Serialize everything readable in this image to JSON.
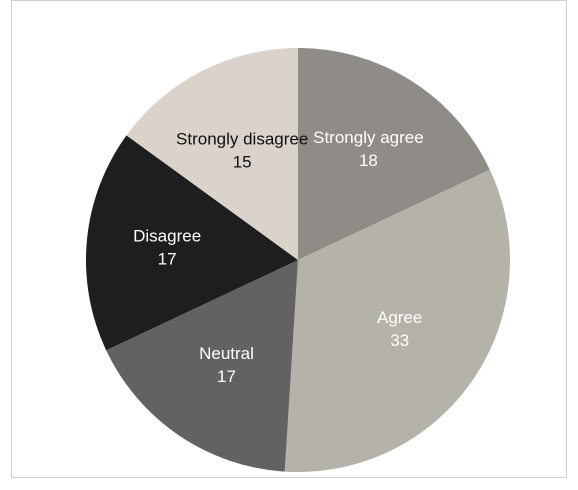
{
  "chart_data": {
    "type": "pie",
    "title": "",
    "slices": [
      {
        "label": "Strongly agree",
        "value": 18,
        "color": "#8f8b86",
        "text_color": "#ffffff"
      },
      {
        "label": "Agree",
        "value": 33,
        "color": "#b5b2aa",
        "text_color": "#ffffff"
      },
      {
        "label": "Neutral",
        "value": 17,
        "color": "#626262",
        "text_color": "#ffffff"
      },
      {
        "label": "Disagree",
        "value": 17,
        "color": "#1e1e1e",
        "text_color": "#ffffff"
      },
      {
        "label": "Strongly disagree",
        "value": 15,
        "color": "#d9d3cb",
        "text_color": "#111111"
      }
    ],
    "start_direction": "top",
    "direction": "clockwise",
    "legend": "none"
  }
}
